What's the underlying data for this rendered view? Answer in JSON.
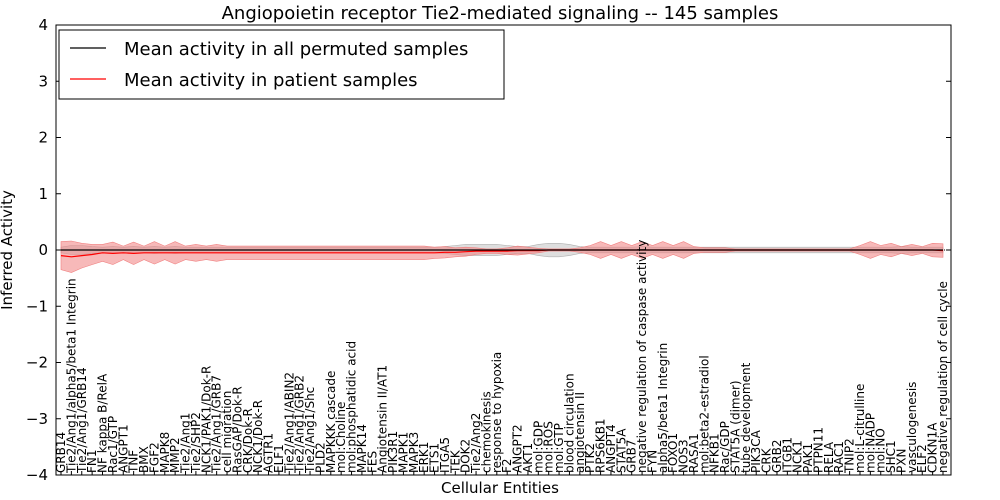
{
  "chart_data": {
    "type": "line",
    "title": "Angiopoietin receptor Tie2-mediated signaling -- 145 samples",
    "xlabel": "Cellular Entities",
    "ylabel": "Inferred Activity",
    "ylim": [
      -4,
      4
    ],
    "yticks": [
      "-4",
      "-3",
      "-2",
      "-1",
      "0",
      "1",
      "2",
      "3",
      "4"
    ],
    "grid": false,
    "legend_position": "top-left",
    "colors": {
      "permuted": "#000000",
      "patient": "#ff0000",
      "patient_band": "#f08080",
      "permuted_band": "#c8c8c8"
    },
    "categories": [
      "GRB14",
      "Tie2/Ang1/alpha5/beta1 Integrin",
      "Tie2/Ang1/GRB14",
      "FN1",
      "NF kappa B/RelA",
      "Rac1/GTP",
      "ANGPT1",
      "TNF",
      "BMX",
      "FGF2",
      "MAPK8",
      "MMP2",
      "Tie2/Ang1",
      "Tie2/SHP2",
      "NCK1/PAK1/Dok-R",
      "Tie2/Ang1/GRB7",
      "cell migration",
      "RasGAP/Dok-R",
      "CRK/Dok-R",
      "NCK1/Dok-R",
      "AGTR1",
      "ELF1",
      "Tie2/Ang1/ABIN2",
      "Tie2/Ang1/GRB2",
      "Tie2/Ang1/Shc",
      "PLD2",
      "MAPKKK cascade",
      "mol:Choline",
      "mol:phosphatidic acid",
      "MAPK14",
      "FES",
      "Angiotensin II/AT1",
      "PIK3R1",
      "MAPK1",
      "MAPK3",
      "ERK1",
      "ETS1",
      "ITGA5",
      "TEK",
      "DOK2",
      "Tie2/Ang2",
      "chemokinesis",
      "response to hypoxia",
      "F2",
      "ANGPT2",
      "AKT1",
      "mol:GDP",
      "mol:ROS",
      "mol:GTP",
      "blood circulation",
      "angiotensin II",
      "PTK2",
      "RPS6KB1",
      "ANGPT4",
      "STAT5A",
      "GRB7",
      "negative regulation of caspase activity",
      "FYN",
      "alpha5/beta1 Integrin",
      "FOXO1",
      "NOS3",
      "RASA1",
      "mol:beta2-estradiol",
      "NFKB1",
      "Rac/GDP",
      "STAT5A (dimer)",
      "tube development",
      "PIK3CA",
      "CRK",
      "GRB2",
      "ITGB1",
      "NCK1",
      "PAK1",
      "PTPN11",
      "RELA",
      "RAC1",
      "TNIP2",
      "mol:L-citrulline",
      "mol:NADP",
      "mol:NO",
      "SHC1",
      "PXN",
      "vasculogenesis",
      "ELF2",
      "CDKN1A",
      "negative regulation of cell cycle"
    ],
    "series": [
      {
        "name": "Mean activity in all permuted samples",
        "values": [
          0.0,
          0.0,
          0.0,
          0.0,
          0.0,
          0.0,
          0.0,
          0.0,
          0.0,
          0.0,
          0.0,
          0.0,
          0.0,
          0.0,
          0.0,
          0.0,
          0.0,
          0.0,
          0.0,
          0.0,
          0.0,
          0.0,
          0.0,
          0.0,
          0.0,
          0.0,
          0.0,
          0.0,
          0.0,
          0.0,
          0.0,
          0.0,
          0.0,
          0.0,
          0.0,
          0.0,
          0.0,
          0.0,
          0.0,
          0.0,
          0.0,
          0.0,
          0.0,
          0.0,
          0.0,
          0.0,
          0.0,
          0.0,
          0.0,
          0.0,
          0.0,
          0.0,
          0.0,
          0.0,
          0.0,
          0.0,
          0.0,
          0.0,
          0.0,
          0.0,
          0.0,
          0.0,
          0.0,
          0.0,
          0.0,
          0.0,
          0.0,
          0.0,
          0.0,
          0.0,
          0.0,
          0.0,
          0.0,
          0.0,
          0.0,
          0.0,
          0.0,
          0.0,
          0.0,
          0.0,
          0.0,
          0.0,
          0.0,
          0.0,
          0.0,
          0.0
        ],
        "band": [
          0.05,
          0.08,
          0.08,
          0.06,
          0.05,
          0.06,
          0.05,
          0.06,
          0.05,
          0.06,
          0.05,
          0.06,
          0.05,
          0.05,
          0.05,
          0.05,
          0.05,
          0.05,
          0.05,
          0.05,
          0.05,
          0.05,
          0.05,
          0.05,
          0.05,
          0.05,
          0.05,
          0.05,
          0.05,
          0.05,
          0.05,
          0.05,
          0.05,
          0.05,
          0.05,
          0.05,
          0.05,
          0.06,
          0.08,
          0.1,
          0.1,
          0.1,
          0.1,
          0.08,
          0.06,
          0.06,
          0.1,
          0.12,
          0.12,
          0.1,
          0.06,
          0.05,
          0.05,
          0.05,
          0.05,
          0.05,
          0.06,
          0.05,
          0.05,
          0.05,
          0.05,
          0.05,
          0.05,
          0.05,
          0.05,
          0.05,
          0.05,
          0.05,
          0.05,
          0.05,
          0.05,
          0.05,
          0.05,
          0.05,
          0.05,
          0.05,
          0.05,
          0.05,
          0.05,
          0.05,
          0.05,
          0.06,
          0.05,
          0.05,
          0.05,
          0.05
        ]
      },
      {
        "name": "Mean activity in patient samples",
        "values": [
          -0.1,
          -0.12,
          -0.1,
          -0.08,
          -0.05,
          -0.06,
          -0.05,
          -0.06,
          -0.05,
          -0.05,
          -0.05,
          -0.05,
          -0.05,
          -0.05,
          -0.05,
          -0.05,
          -0.05,
          -0.05,
          -0.05,
          -0.05,
          -0.05,
          -0.05,
          -0.05,
          -0.05,
          -0.05,
          -0.05,
          -0.05,
          -0.05,
          -0.05,
          -0.05,
          -0.05,
          -0.05,
          -0.05,
          -0.05,
          -0.05,
          -0.05,
          -0.05,
          -0.04,
          -0.04,
          -0.03,
          -0.02,
          -0.02,
          -0.02,
          -0.02,
          -0.01,
          -0.01,
          -0.01,
          0.0,
          0.0,
          0.0,
          0.0,
          0.0,
          0.0,
          0.0,
          0.0,
          0.0,
          0.0,
          0.0,
          0.0,
          0.0,
          0.0,
          0.0,
          0.0,
          0.0,
          0.0,
          0.0,
          0.0,
          0.0,
          0.0,
          0.0,
          0.0,
          0.0,
          0.0,
          0.0,
          0.0,
          0.0,
          0.0,
          0.0,
          0.0,
          0.0,
          0.0,
          0.0,
          0.0,
          0.0,
          0.0,
          -0.01
        ],
        "band": [
          0.25,
          0.28,
          0.22,
          0.18,
          0.15,
          0.2,
          0.12,
          0.2,
          0.12,
          0.2,
          0.12,
          0.2,
          0.12,
          0.15,
          0.12,
          0.15,
          0.12,
          0.12,
          0.12,
          0.12,
          0.12,
          0.12,
          0.12,
          0.12,
          0.12,
          0.12,
          0.12,
          0.12,
          0.12,
          0.12,
          0.12,
          0.12,
          0.12,
          0.12,
          0.12,
          0.12,
          0.1,
          0.1,
          0.08,
          0.08,
          0.06,
          0.04,
          0.04,
          0.06,
          0.08,
          0.06,
          0.04,
          0.02,
          0.02,
          0.02,
          0.04,
          0.08,
          0.15,
          0.08,
          0.15,
          0.08,
          0.15,
          0.08,
          0.15,
          0.08,
          0.15,
          0.06,
          0.04,
          0.04,
          0.04,
          0.02,
          0.02,
          0.02,
          0.02,
          0.02,
          0.02,
          0.02,
          0.02,
          0.02,
          0.02,
          0.02,
          0.02,
          0.08,
          0.15,
          0.08,
          0.12,
          0.06,
          0.1,
          0.06,
          0.12,
          0.12
        ]
      }
    ],
    "reference_line": {
      "y": 0,
      "style": "dotted"
    }
  }
}
